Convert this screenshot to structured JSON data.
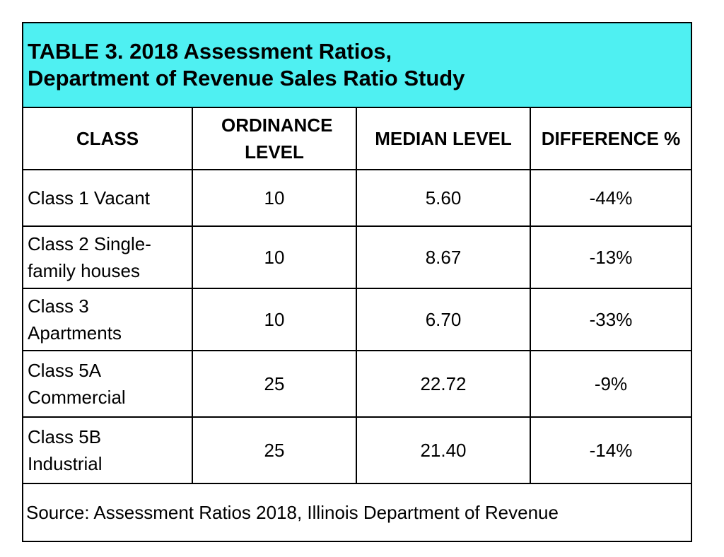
{
  "title": {
    "line1": "TABLE 3. 2018 Assessment Ratios,",
    "line2": "Department of Revenue Sales Ratio Study"
  },
  "headers": {
    "class": "CLASS",
    "ordinance": "ORDINANCE LEVEL",
    "median": "MEDIAN LEVEL",
    "difference": "DIFFERENCE %"
  },
  "rows": [
    {
      "class": "Class 1 Vacant",
      "ordinance": "10",
      "median": "5.60",
      "difference": "-44%"
    },
    {
      "class": "Class 2 Single-family houses",
      "ordinance": "10",
      "median": "8.67",
      "difference": "-13%"
    },
    {
      "class": "Class  3 Apartments",
      "ordinance": "10",
      "median": "6.70",
      "difference": "-33%"
    },
    {
      "class": "Class  5A Commercial",
      "ordinance": "25",
      "median": "22.72",
      "difference": "-9%"
    },
    {
      "class": "Class  5B Industrial",
      "ordinance": "25",
      "median": "21.40",
      "difference": "-14%"
    }
  ],
  "source": "Source: Assessment Ratios 2018, Illinois Department of Revenue",
  "colors": {
    "title_bg": "#4ff0f2",
    "border": "#000000"
  }
}
